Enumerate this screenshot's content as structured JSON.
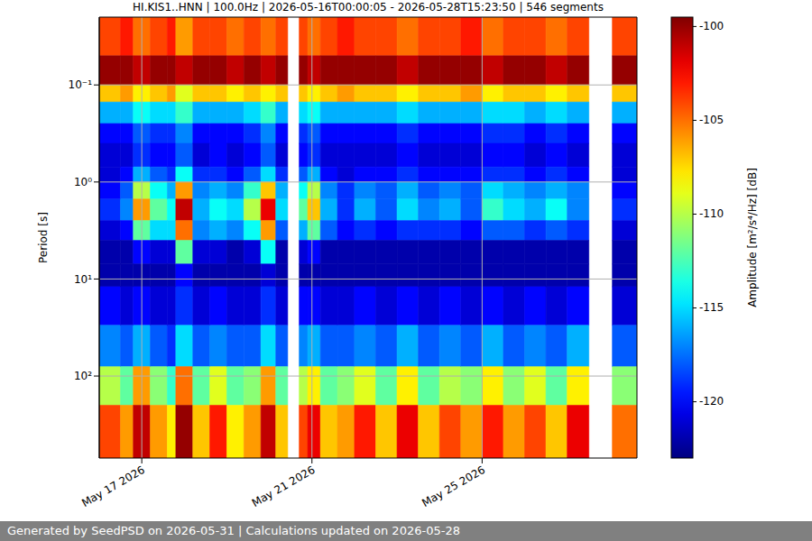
{
  "chart_data": {
    "type": "heatmap",
    "title": "HI.KIS1..HNN | 100.0Hz | 2026-05-16T00:00:05 - 2026-05-28T15:23:50 | 546 segments",
    "y_label": "Period [s]",
    "footer": "Generated by SeedPSD on 2026-05-31 | Calculations updated on 2026-05-28",
    "log": "y",
    "grid": true,
    "xlim": [
      16,
      28.64
    ],
    "xticks": [
      {
        "value": 17,
        "label": "May 17 2026"
      },
      {
        "value": 21,
        "label": "May 21 2026"
      },
      {
        "value": 25,
        "label": "May 25 2026"
      }
    ],
    "ylim": [
      700,
      0.02
    ],
    "yticks": [
      {
        "value": 0.1,
        "label": "10⁻¹"
      },
      {
        "value": 1,
        "label": "10⁰"
      },
      {
        "value": 10,
        "label": "10¹"
      },
      {
        "value": 100,
        "label": "10²"
      }
    ],
    "x_edges": [
      16,
      16.5,
      16.8,
      17.2,
      17.6,
      17.8,
      18.2,
      18.6,
      19,
      19.4,
      19.8,
      20.15,
      20.43,
      20.7,
      20.9,
      21.2,
      21.6,
      22,
      22.5,
      23,
      23.5,
      24,
      24.5,
      25,
      25.5,
      26,
      26.5,
      27,
      27.51,
      28.06,
      28.64
    ],
    "y_edges": [
      0.02,
      0.05,
      0.1,
      0.15,
      0.25,
      0.4,
      0.7,
      1,
      1.5,
      2.5,
      4,
      7,
      12,
      30,
      80,
      200,
      700
    ],
    "values": [
      [
        -104,
        -100,
        -107,
        -116,
        -120,
        -121,
        -121,
        -120,
        -119,
        -121,
        -122,
        -122,
        -120,
        -117,
        -110,
        -104
      ],
      [
        -103,
        -100,
        -106,
        -116,
        -120,
        -121,
        -120,
        -118,
        -117,
        -120,
        -122,
        -122,
        -121,
        -118,
        -112,
        -106
      ],
      [
        -105,
        -101,
        -108,
        -114,
        -118,
        -119,
        -116,
        -110,
        -106,
        -112,
        -120,
        -122,
        -120,
        -116,
        -106,
        -101
      ],
      [
        -104,
        -100,
        -107,
        -115,
        -119,
        -120,
        -118,
        -114,
        -112,
        -115,
        -121,
        -122,
        -121,
        -118,
        -111,
        -106
      ],
      [
        -103,
        -100,
        -106,
        -115,
        -119,
        -120,
        -119,
        -116,
        -114,
        -115,
        -121,
        -122,
        -121,
        -119,
        -113,
        -108
      ],
      [
        -106,
        -101,
        -109,
        -113,
        -117,
        -118,
        -114,
        -106,
        -101,
        -105,
        -112,
        -120,
        -119,
        -115,
        -105,
        -100
      ],
      [
        -104,
        -100,
        -107,
        -116,
        -120,
        -121,
        -119,
        -117,
        -116,
        -117,
        -121,
        -122,
        -121,
        -118,
        -112,
        -107
      ],
      [
        -104,
        -100,
        -107,
        -116,
        -120,
        -120,
        -119,
        -116,
        -114,
        -116,
        -121,
        -122,
        -120,
        -117,
        -109,
        -103
      ],
      [
        -105,
        -101,
        -108,
        -116,
        -120,
        -121,
        -120,
        -117,
        -115,
        -117,
        -122,
        -122,
        -121,
        -118,
        -112,
        -108
      ],
      [
        -104,
        -100,
        -107,
        -115,
        -119,
        -120,
        -118,
        -113,
        -110,
        -114,
        -121,
        -122,
        -121,
        -118,
        -111,
        -106
      ],
      [
        -105,
        -101,
        -108,
        -113,
        -117,
        -118,
        -115,
        -107,
        -102,
        -106,
        -114,
        -121,
        -119,
        -115,
        -106,
        -101
      ],
      [
        -104,
        -100,
        -107,
        -116,
        -120,
        -121,
        -119,
        -116,
        -115,
        -118,
        -122,
        -122,
        -121,
        -118,
        -112,
        -107
      ],
      null,
      [
        -104,
        -100,
        -107,
        -115,
        -119,
        -120,
        -118,
        -114,
        -112,
        -116,
        -121,
        -122,
        -120,
        -117,
        -110,
        -104
      ],
      [
        -105,
        -101,
        -108,
        -114,
        -118,
        -119,
        -116,
        -110,
        -107,
        -112,
        -120,
        -122,
        -120,
        -116,
        -108,
        -102
      ],
      [
        -104,
        -100,
        -107,
        -116,
        -120,
        -121,
        -120,
        -117,
        -116,
        -118,
        -122,
        -122,
        -121,
        -118,
        -112,
        -107
      ],
      [
        -103,
        -100,
        -106,
        -116,
        -120,
        -121,
        -121,
        -119,
        -119,
        -120,
        -122,
        -122,
        -121,
        -118,
        -111,
        -106
      ],
      [
        -104,
        -100,
        -107,
        -116,
        -120,
        -121,
        -120,
        -117,
        -116,
        -119,
        -122,
        -122,
        -120,
        -117,
        -109,
        -103
      ],
      [
        -104,
        -100,
        -107,
        -116,
        -120,
        -121,
        -120,
        -118,
        -118,
        -120,
        -122,
        -122,
        -121,
        -118,
        -112,
        -107
      ],
      [
        -105,
        -101,
        -108,
        -115,
        -119,
        -120,
        -119,
        -116,
        -115,
        -119,
        -122,
        -122,
        -120,
        -116,
        -108,
        -102
      ],
      [
        -104,
        -100,
        -107,
        -116,
        -120,
        -121,
        -120,
        -118,
        -117,
        -119,
        -122,
        -122,
        -121,
        -118,
        -112,
        -107
      ],
      [
        -104,
        -100,
        -107,
        -116,
        -120,
        -121,
        -120,
        -117,
        -116,
        -119,
        -122,
        -122,
        -120,
        -117,
        -110,
        -104
      ],
      [
        -103,
        -100,
        -106,
        -116,
        -120,
        -121,
        -120,
        -118,
        -118,
        -120,
        -122,
        -122,
        -121,
        -118,
        -111,
        -106
      ],
      [
        -105,
        -101,
        -108,
        -115,
        -119,
        -120,
        -119,
        -115,
        -113,
        -118,
        -122,
        -122,
        -120,
        -116,
        -108,
        -103
      ],
      [
        -104,
        -100,
        -107,
        -115,
        -119,
        -120,
        -119,
        -116,
        -115,
        -118,
        -122,
        -122,
        -121,
        -118,
        -111,
        -106
      ],
      [
        -104,
        -100,
        -107,
        -116,
        -120,
        -121,
        -120,
        -117,
        -116,
        -119,
        -122,
        -122,
        -120,
        -117,
        -109,
        -104
      ],
      [
        -105,
        -101,
        -108,
        -115,
        -119,
        -120,
        -119,
        -116,
        -114,
        -118,
        -122,
        -122,
        -121,
        -118,
        -112,
        -107
      ],
      [
        -104,
        -100,
        -107,
        -116,
        -120,
        -121,
        -120,
        -117,
        -117,
        -119,
        -122,
        -122,
        -120,
        -116,
        -108,
        -102
      ],
      null,
      [
        -104,
        -100,
        -107,
        -116,
        -120,
        -121,
        -121,
        -120,
        -119,
        -121,
        -122,
        -122,
        -121,
        -118,
        -111,
        -105
      ]
    ],
    "colorbar": {
      "label": "Amplitude [m²/s⁴/Hz] [dB]",
      "range": [
        -123,
        -99.5
      ],
      "ticks": [
        -100,
        -105,
        -110,
        -115,
        -120
      ]
    }
  }
}
